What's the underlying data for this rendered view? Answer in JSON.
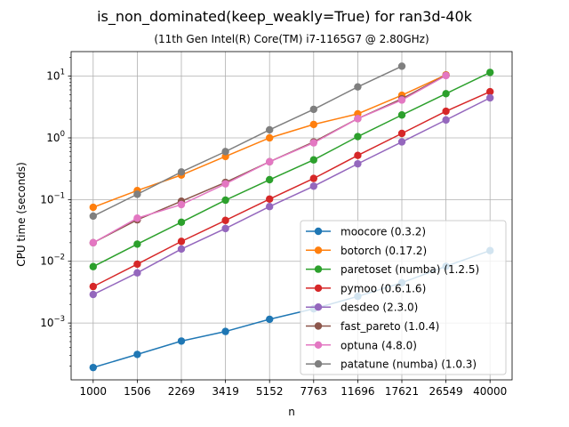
{
  "chart_data": {
    "type": "line",
    "title": "is_non_dominated(keep_weakly=True) for ran3d-40k",
    "subtitle": "(11th Gen Intel(R) Core(TM) i7-1165G7 @ 2.80GHz)",
    "xlabel": "n",
    "ylabel": "CPU time (seconds)",
    "yscale": "log",
    "ylim": [
      0.00012,
      25
    ],
    "grid": true,
    "legend_position": "lower-right",
    "x": [
      1000,
      1506,
      2269,
      3419,
      5152,
      7763,
      11696,
      17621,
      26549,
      40000
    ],
    "x_tick_labels": [
      "1000",
      "1506",
      "2269",
      "3419",
      "5152",
      "7763",
      "11696",
      "17621",
      "26549",
      "40000"
    ],
    "y_ticks": [
      {
        "value": 0.001,
        "base": "10",
        "exp": "−3"
      },
      {
        "value": 0.01,
        "base": "10",
        "exp": "−2"
      },
      {
        "value": 0.1,
        "base": "10",
        "exp": "−1"
      },
      {
        "value": 1,
        "base": "10",
        "exp": "0"
      },
      {
        "value": 10,
        "base": "10",
        "exp": "1"
      }
    ],
    "series": [
      {
        "name": "moocore (0.3.2)",
        "color": "#1f77b4",
        "values": [
          0.00019,
          0.00031,
          0.00051,
          0.00073,
          0.00115,
          0.0017,
          0.0027,
          0.0045,
          0.0083,
          0.0149
        ]
      },
      {
        "name": "botorch (0.17.2)",
        "color": "#ff7f0e",
        "values": [
          0.075,
          0.14,
          0.25,
          0.5,
          1.0,
          1.65,
          2.45,
          4.9,
          10.5,
          null
        ]
      },
      {
        "name": "paretoset (numba) (1.2.5)",
        "color": "#2ca02c",
        "values": [
          0.0082,
          0.019,
          0.043,
          0.098,
          0.21,
          0.44,
          1.05,
          2.35,
          5.2,
          11.5
        ]
      },
      {
        "name": "pymoo (0.6.1.6)",
        "color": "#d62728",
        "values": [
          0.0039,
          0.009,
          0.021,
          0.046,
          0.102,
          0.22,
          0.52,
          1.18,
          2.7,
          5.6
        ]
      },
      {
        "name": "desdeo (2.3.0)",
        "color": "#9467bd",
        "values": [
          0.0029,
          0.0065,
          0.0158,
          0.034,
          0.077,
          0.165,
          0.38,
          0.86,
          1.95,
          4.45
        ]
      },
      {
        "name": "fast_pareto (1.0.4)",
        "color": "#8c564b",
        "values": [
          0.02,
          0.047,
          0.094,
          0.19,
          0.41,
          0.86,
          2.05,
          4.3,
          10.3,
          null
        ]
      },
      {
        "name": "optuna (4.8.0)",
        "color": "#e377c2",
        "values": [
          0.02,
          0.05,
          0.083,
          0.18,
          0.41,
          0.83,
          2.05,
          4.1,
          10.2,
          null
        ]
      },
      {
        "name": "patatune (numba) (1.0.3)",
        "color": "#7f7f7f",
        "values": [
          0.054,
          0.122,
          0.28,
          0.6,
          1.35,
          2.9,
          6.7,
          14.5,
          null,
          null
        ]
      }
    ]
  }
}
